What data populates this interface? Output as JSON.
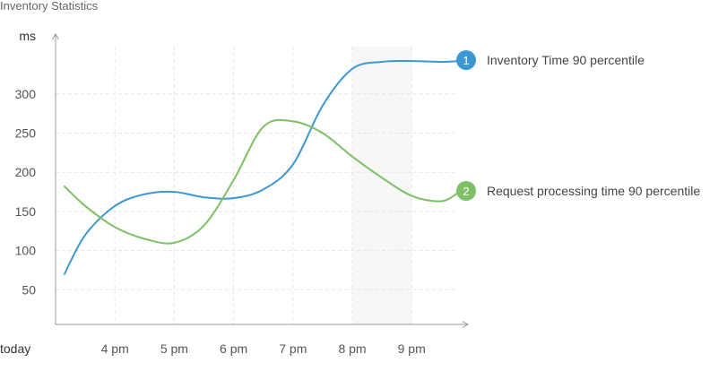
{
  "chart_data": {
    "type": "line",
    "title": "Inventory Statistics",
    "ylabel": "ms",
    "xlabel": "",
    "x_origin_label": "today",
    "x_ticks": [
      "4 pm",
      "5 pm",
      "6 pm",
      "7 pm",
      "8 pm",
      "9 pm"
    ],
    "y_ticks": [
      50,
      100,
      150,
      200,
      250,
      300
    ],
    "xlim": [
      3.15,
      9.8
    ],
    "ylim": [
      0,
      385
    ],
    "grid": true,
    "highlight_x_range": [
      8,
      9
    ],
    "legend_position": "right",
    "series": [
      {
        "name": "Inventory Time 90 percentile",
        "badge": "1",
        "color": "#3d97d3",
        "x": [
          3.15,
          3.5,
          4.0,
          4.5,
          5.0,
          5.5,
          6.0,
          6.5,
          7.0,
          7.5,
          8.0,
          8.5,
          9.0,
          9.5,
          9.8
        ],
        "y": [
          70,
          120,
          157,
          172,
          175,
          168,
          167,
          178,
          210,
          285,
          332,
          341,
          342,
          341,
          342
        ]
      },
      {
        "name": "Request processing time 90 percentile",
        "badge": "2",
        "color": "#7dc065",
        "x": [
          3.15,
          3.5,
          4.0,
          4.5,
          5.0,
          5.5,
          6.0,
          6.5,
          7.0,
          7.5,
          8.0,
          8.5,
          9.0,
          9.5,
          9.8
        ],
        "y": [
          182,
          157,
          130,
          115,
          110,
          132,
          190,
          258,
          265,
          250,
          220,
          193,
          170,
          163,
          175
        ]
      }
    ]
  },
  "colors": {
    "axis": "#999999",
    "grid": "#e6e6e6",
    "highlight": "#f7f7f7"
  }
}
